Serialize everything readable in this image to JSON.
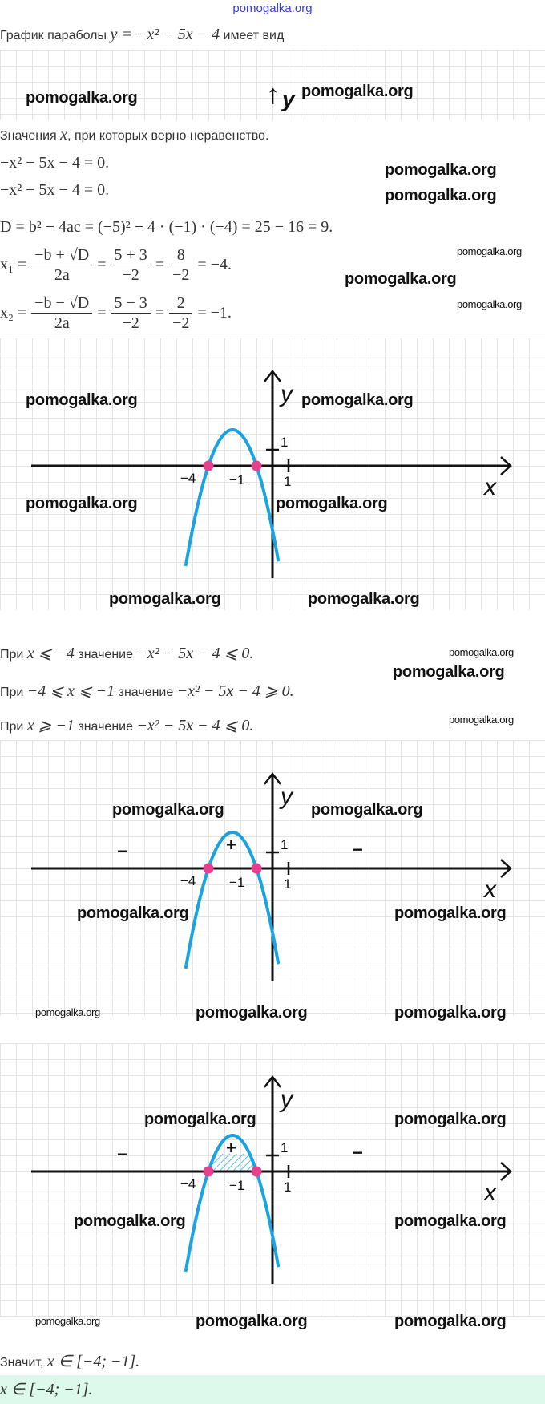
{
  "header_link": "pomogalka.org",
  "watermark": "pomogalka.org",
  "intro": {
    "prefix": "График параболы ",
    "math": "y = −x² − 5x − 4",
    "suffix": " имеет вид"
  },
  "strip": {
    "y_label": "y"
  },
  "values_line": {
    "prefix": "Значения ",
    "var": "x",
    "suffix": ", при которых верно неравенство."
  },
  "equations": [
    "−x² − 5x − 4 = 0.",
    "−x² − 5x − 4 = 0.",
    "D = b² − 4ac = (−5)² − 4 · (−1) · (−4) = 25 − 16 = 9."
  ],
  "roots": [
    {
      "lhs": "x₁ =",
      "f1": {
        "num": "−b + √D",
        "den": "2a"
      },
      "f2": {
        "num": "5 + 3",
        "den": "−2"
      },
      "f3": {
        "num": "8",
        "den": "−2"
      },
      "eq": "=",
      "result": "= −4."
    },
    {
      "lhs": "x₂ =",
      "f1": {
        "num": "−b − √D",
        "den": "2a"
      },
      "f2": {
        "num": "5 − 3",
        "den": "−2"
      },
      "f3": {
        "num": "2",
        "den": "−2"
      },
      "eq": "=",
      "result": "= −1."
    }
  ],
  "graph_labels": {
    "x": "x",
    "y": "y",
    "neg4": "−4",
    "neg1": "−1",
    "one_x": "1",
    "one_y": "1"
  },
  "graphs": [
    {
      "function": "y = -x^2 - 5x - 4",
      "roots": [
        -4,
        -1
      ],
      "signs": []
    },
    {
      "function": "y = -x^2 - 5x - 4",
      "roots": [
        -4,
        -1
      ],
      "signs": [
        "−",
        "+",
        "−"
      ]
    },
    {
      "function": "y = -x^2 - 5x - 4",
      "roots": [
        -4,
        -1
      ],
      "signs": [
        "−",
        "+",
        "−"
      ],
      "shaded_interval": [
        -4,
        -1
      ]
    }
  ],
  "colors": {
    "curve": "#1aa3e0",
    "root_points": "#e8408e",
    "answer_bg": "#dcf9ec",
    "header_link": "#3b3bdc"
  },
  "conditions": [
    {
      "prefix": "При ",
      "cond": "x ⩽ −4",
      "mid": " значение ",
      "expr": "−x² − 5x − 4 ⩽ 0."
    },
    {
      "prefix": "При ",
      "cond": "−4 ⩽ x ⩽ −1",
      "mid": " значение ",
      "expr": "−x² − 5x − 4 ⩾ 0."
    },
    {
      "prefix": "При ",
      "cond": "x ⩾ −1",
      "mid": " значение ",
      "expr": "−x² − 5x − 4 ⩽ 0."
    }
  ],
  "conclusion": {
    "prefix": "Значит, ",
    "math": "x ∈ [−4; −1]."
  },
  "answer": "x ∈ [−4; −1]."
}
